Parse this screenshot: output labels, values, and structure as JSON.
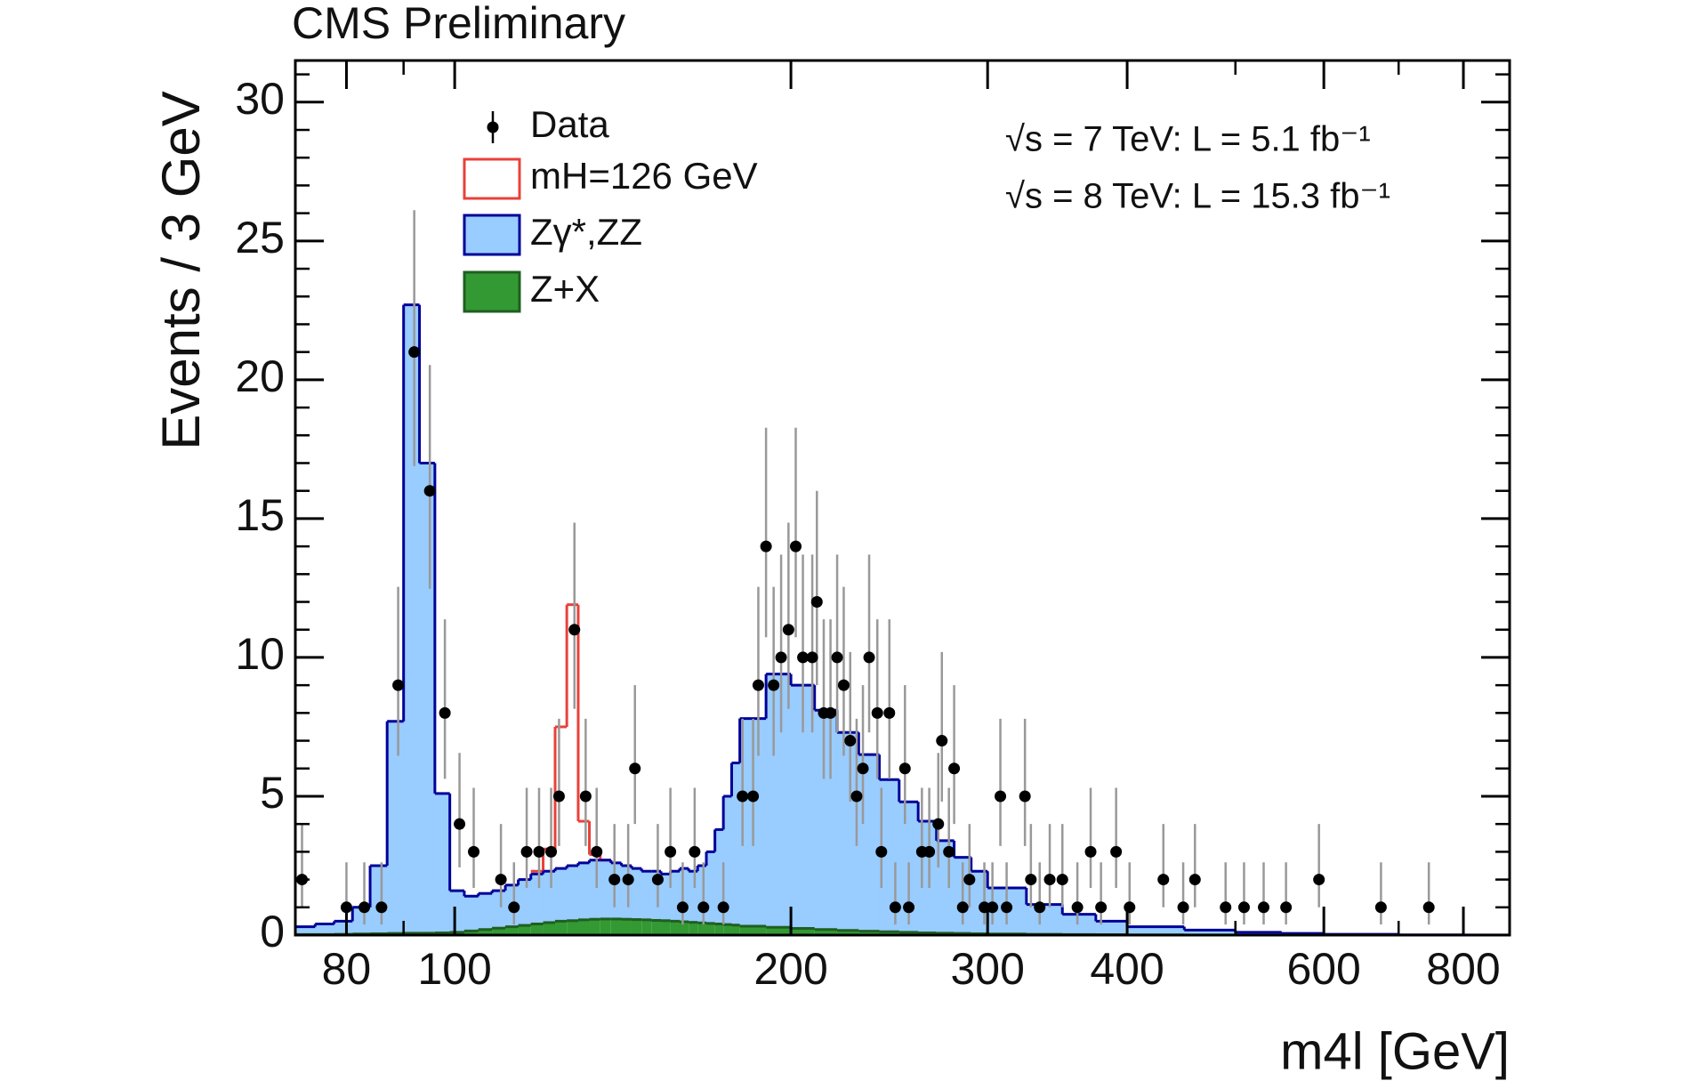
{
  "chart_data": {
    "type": "histogram",
    "title": "CMS Preliminary",
    "y_label": "Events / 3 GeV",
    "x_label": "m4l [GeV]",
    "annotations": [
      "√s = 7 TeV: L = 5.1 fb⁻¹",
      "√s = 8 TeV: L = 15.3 fb⁻¹"
    ],
    "log_x": true,
    "legend": "upper left",
    "xlim": [
      72,
      880
    ],
    "ylim": [
      0,
      31.5
    ],
    "xticks": [
      80,
      100,
      200,
      300,
      400,
      600,
      800
    ],
    "xminorticks": [
      90,
      500,
      700
    ],
    "yticks": [
      0,
      5,
      10,
      15,
      20,
      25,
      30
    ],
    "yminorticks": [
      1,
      2,
      3,
      4,
      6,
      7,
      8,
      9,
      11,
      12,
      13,
      14,
      16,
      17,
      18,
      19,
      21,
      22,
      23,
      24,
      26,
      27,
      28,
      29,
      31
    ],
    "bins": [
      72,
      75,
      78,
      81,
      84,
      87,
      90,
      93,
      96,
      99,
      102,
      105,
      108,
      111,
      114,
      117,
      120,
      123,
      126,
      129,
      132,
      135,
      138,
      141,
      144,
      147,
      150,
      153,
      156,
      159,
      162,
      165,
      168,
      171,
      174,
      177,
      180,
      190,
      200,
      210,
      220,
      230,
      240,
      250,
      260,
      270,
      280,
      290,
      300,
      325,
      350,
      375,
      400,
      450,
      500,
      550,
      600,
      700,
      800,
      880
    ],
    "series": [
      {
        "name": "Z+X",
        "color": "#339933",
        "values": [
          0.02,
          0.02,
          0.03,
          0.04,
          0.05,
          0.06,
          0.07,
          0.07,
          0.08,
          0.1,
          0.15,
          0.2,
          0.25,
          0.3,
          0.35,
          0.4,
          0.45,
          0.5,
          0.52,
          0.55,
          0.57,
          0.58,
          0.58,
          0.57,
          0.56,
          0.55,
          0.53,
          0.52,
          0.5,
          0.48,
          0.46,
          0.44,
          0.42,
          0.4,
          0.38,
          0.36,
          0.32,
          0.28,
          0.24,
          0.2,
          0.17,
          0.14,
          0.12,
          0.1,
          0.08,
          0.07,
          0.06,
          0.05,
          0.04,
          0.03,
          0.02,
          0.015,
          0.01,
          0.005,
          0,
          0,
          0,
          0,
          0
        ]
      },
      {
        "name": "Zγ*,ZZ",
        "color": "#99ccff",
        "values": [
          0.28,
          0.38,
          0.47,
          0.96,
          2.45,
          7.64,
          22.63,
          16.93,
          5.02,
          1.5,
          1.25,
          1.3,
          1.35,
          1.5,
          1.65,
          1.8,
          1.85,
          1.9,
          1.98,
          2.05,
          2.13,
          2.12,
          2.02,
          1.93,
          1.84,
          1.75,
          1.77,
          1.68,
          1.8,
          1.92,
          1.84,
          2.06,
          2.58,
          3.4,
          4.62,
          5.84,
          7.48,
          9.12,
          8.76,
          7.9,
          7.13,
          6.36,
          5.48,
          4.7,
          4.02,
          3.33,
          2.74,
          2.25,
          1.66,
          1.07,
          0.73,
          0.485,
          0.29,
          0.175,
          0.1,
          0.06,
          0.03,
          0.01,
          0.005
        ]
      },
      {
        "name": "mH=126 GeV",
        "color": "#e8413a",
        "values": [
          0,
          0,
          0,
          0,
          0,
          0,
          0,
          0,
          0,
          0,
          0,
          0,
          0,
          0,
          0,
          0.1,
          0.8,
          5.1,
          9.4,
          1.5,
          0.2,
          0,
          0,
          0,
          0,
          0,
          0,
          0,
          0,
          0,
          0,
          0,
          0,
          0,
          0,
          0,
          0,
          0,
          0,
          0,
          0,
          0,
          0,
          0,
          0,
          0,
          0,
          0,
          0,
          0,
          0,
          0,
          0,
          0,
          0,
          0,
          0,
          0,
          0
        ]
      }
    ],
    "points": {
      "name": "Data",
      "color": "#000000",
      "x": [
        73,
        80,
        83,
        86,
        89,
        92,
        95,
        98,
        101,
        104,
        110,
        113,
        116,
        119,
        122,
        124,
        128,
        131,
        134,
        139,
        143,
        145,
        152,
        156,
        160,
        164,
        167,
        174,
        181,
        185,
        187,
        190,
        193,
        196,
        199,
        202,
        205,
        209,
        211,
        214,
        217,
        220,
        223,
        226,
        229,
        232,
        235,
        239,
        241,
        245,
        248,
        253,
        255,
        262,
        266,
        271,
        273,
        277,
        280,
        285,
        289,
        298,
        303,
        308,
        312,
        324,
        328,
        334,
        341,
        350,
        361,
        371,
        379,
        391,
        402,
        431,
        449,
        460,
        490,
        509,
        530,
        555,
        594,
        675,
        745
      ],
      "values": [
        2,
        1,
        1,
        1,
        9,
        21,
        16,
        8,
        4,
        3,
        2,
        1,
        3,
        3,
        3,
        5,
        11,
        5,
        3,
        2,
        2,
        6,
        2,
        3,
        1,
        3,
        1,
        1,
        5,
        5,
        9,
        14,
        9,
        10,
        11,
        14,
        10,
        10,
        12,
        8,
        8,
        10,
        9,
        7,
        5,
        6,
        10,
        8,
        3,
        8,
        1,
        6,
        1,
        3,
        3,
        4,
        7,
        3,
        6,
        1,
        2,
        1,
        1,
        5,
        1,
        5,
        2,
        1,
        2,
        2,
        1,
        3,
        1,
        3,
        1,
        2,
        1,
        2,
        1,
        1,
        1,
        1,
        2,
        1,
        1
      ]
    }
  }
}
